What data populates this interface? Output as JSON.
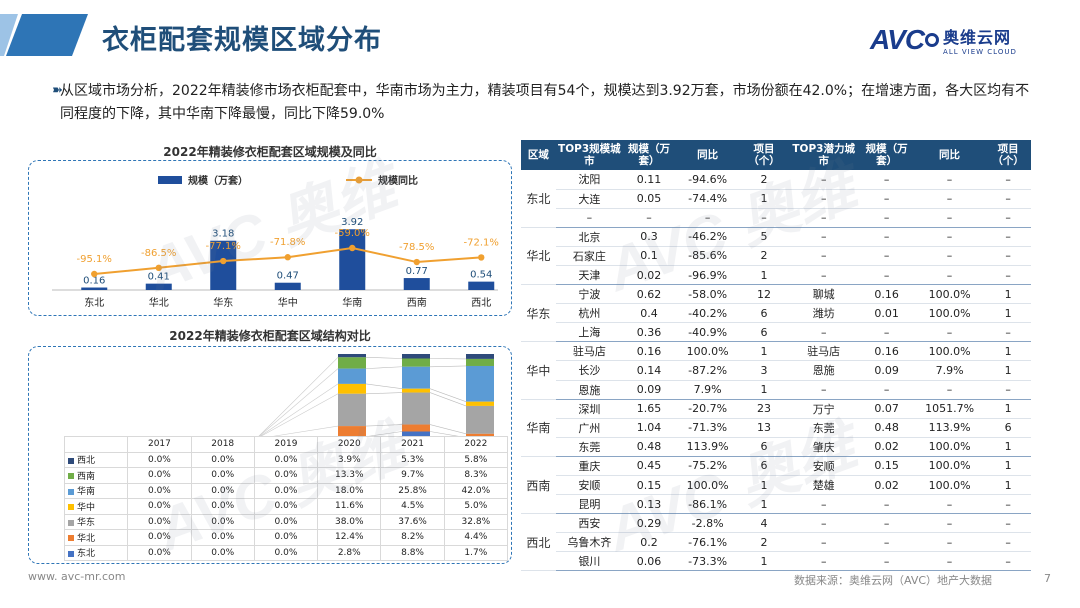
{
  "header": {
    "title": "衣柜配套规模区域分布",
    "logo_main": "AVC",
    "logo_cn": "奥维云网",
    "logo_en": "ALL VIEW CLOUD"
  },
  "summary_text": "从区域市场分析，2022年精装修市场衣柜配套中，华南市场为主力，精装项目有54个，规模达到3.92万套，市场份额在42.0%；在增速方面，各大区均有不同程度的下降，其中华南下降最慢，同比下降59.0%",
  "chart_data": [
    {
      "type": "bar",
      "title": "2022年精装修衣柜配套区域规模及同比",
      "categories": [
        "东北",
        "华北",
        "华东",
        "华中",
        "华南",
        "西南",
        "西北"
      ],
      "series": [
        {
          "name": "规模（万套）",
          "type": "bar",
          "values": [
            0.16,
            0.41,
            3.18,
            0.47,
            3.92,
            0.77,
            0.54
          ],
          "labels": [
            "0.16",
            "0.41",
            "3.18",
            "0.47",
            "3.92",
            "0.77",
            "0.54"
          ]
        },
        {
          "name": "规模同比",
          "type": "line",
          "values": [
            -95.1,
            -86.5,
            -77.1,
            -71.8,
            -59.0,
            -78.5,
            -72.1
          ],
          "labels": [
            "-95.1%",
            "-86.5%",
            "-77.1%",
            "-71.8%",
            "-59.0%",
            "-78.5%",
            "-72.1%"
          ]
        }
      ],
      "colors": {
        "bar": "#1f4e9c",
        "line": "#f0a030"
      }
    },
    {
      "type": "stacked-bar",
      "title": "2022年精装修衣柜配套区域结构对比",
      "years": [
        "2017",
        "2018",
        "2019",
        "2020",
        "2021",
        "2022"
      ],
      "series": [
        {
          "name": "西北",
          "color": "#2e4a7a",
          "values": [
            "0.0%",
            "0.0%",
            "0.0%",
            "3.9%",
            "5.3%",
            "5.8%"
          ]
        },
        {
          "name": "西南",
          "color": "#70ad47",
          "values": [
            "0.0%",
            "0.0%",
            "0.0%",
            "13.3%",
            "9.7%",
            "8.3%"
          ]
        },
        {
          "name": "华南",
          "color": "#5b9bd5",
          "values": [
            "0.0%",
            "0.0%",
            "0.0%",
            "18.0%",
            "25.8%",
            "42.0%"
          ]
        },
        {
          "name": "华中",
          "color": "#ffc000",
          "values": [
            "0.0%",
            "0.0%",
            "0.0%",
            "11.6%",
            "4.5%",
            "5.0%"
          ]
        },
        {
          "name": "华东",
          "color": "#a5a5a5",
          "values": [
            "0.0%",
            "0.0%",
            "0.0%",
            "38.0%",
            "37.6%",
            "32.8%"
          ]
        },
        {
          "name": "华北",
          "color": "#ed7d31",
          "values": [
            "0.0%",
            "0.0%",
            "0.0%",
            "12.4%",
            "8.2%",
            "4.4%"
          ]
        },
        {
          "name": "东北",
          "color": "#4472c4",
          "values": [
            "0.0%",
            "0.0%",
            "0.0%",
            "2.8%",
            "8.8%",
            "1.7%"
          ]
        }
      ],
      "numeric": {
        "2020": [
          3.9,
          13.3,
          18.0,
          11.6,
          38.0,
          12.4,
          2.8
        ],
        "2021": [
          5.3,
          9.7,
          25.8,
          4.5,
          37.6,
          8.2,
          8.8
        ],
        "2022": [
          5.8,
          8.3,
          42.0,
          5.0,
          32.8,
          4.4,
          1.7
        ]
      }
    },
    {
      "type": "table",
      "columns": [
        "区域",
        "TOP3规模城市",
        "规模（万套）",
        "同比",
        "项目（个）",
        "TOP3潜力城市",
        "规模（万套）",
        "同比",
        "项目（个）"
      ],
      "groups": [
        {
          "region": "东北",
          "rows": [
            [
              "沈阳",
              "0.11",
              "-94.6%",
              "2",
              "-",
              "-",
              "-",
              "-"
            ],
            [
              "大连",
              "0.05",
              "-74.4%",
              "1",
              "-",
              "-",
              "-",
              "-"
            ],
            [
              "-",
              "-",
              "-",
              "-",
              "-",
              "-",
              "-",
              "-"
            ]
          ]
        },
        {
          "region": "华北",
          "rows": [
            [
              "北京",
              "0.3",
              "-46.2%",
              "5",
              "-",
              "-",
              "-",
              "-"
            ],
            [
              "石家庄",
              "0.1",
              "-85.6%",
              "2",
              "-",
              "-",
              "-",
              "-"
            ],
            [
              "天津",
              "0.02",
              "-96.9%",
              "1",
              "-",
              "-",
              "-",
              "-"
            ]
          ]
        },
        {
          "region": "华东",
          "rows": [
            [
              "宁波",
              "0.62",
              "-58.0%",
              "12",
              "聊城",
              "0.16",
              "100.0%",
              "1"
            ],
            [
              "杭州",
              "0.4",
              "-40.2%",
              "6",
              "潍坊",
              "0.01",
              "100.0%",
              "1"
            ],
            [
              "上海",
              "0.36",
              "-40.9%",
              "6",
              "-",
              "-",
              "-",
              "-"
            ]
          ]
        },
        {
          "region": "华中",
          "rows": [
            [
              "驻马店",
              "0.16",
              "100.0%",
              "1",
              "驻马店",
              "0.16",
              "100.0%",
              "1"
            ],
            [
              "长沙",
              "0.14",
              "-87.2%",
              "3",
              "恩施",
              "0.09",
              "7.9%",
              "1"
            ],
            [
              "恩施",
              "0.09",
              "7.9%",
              "1",
              "-",
              "-",
              "-",
              "-"
            ]
          ]
        },
        {
          "region": "华南",
          "rows": [
            [
              "深圳",
              "1.65",
              "-20.7%",
              "23",
              "万宁",
              "0.07",
              "1051.7%",
              "1"
            ],
            [
              "广州",
              "1.04",
              "-71.3%",
              "13",
              "东莞",
              "0.48",
              "113.9%",
              "6"
            ],
            [
              "东莞",
              "0.48",
              "113.9%",
              "6",
              "肇庆",
              "0.02",
              "100.0%",
              "1"
            ]
          ]
        },
        {
          "region": "西南",
          "rows": [
            [
              "重庆",
              "0.45",
              "-75.2%",
              "6",
              "安顺",
              "0.15",
              "100.0%",
              "1"
            ],
            [
              "安顺",
              "0.15",
              "100.0%",
              "1",
              "楚雄",
              "0.02",
              "100.0%",
              "1"
            ],
            [
              "昆明",
              "0.13",
              "-86.1%",
              "1",
              "-",
              "-",
              "-",
              "-"
            ]
          ]
        },
        {
          "region": "西北",
          "rows": [
            [
              "西安",
              "0.29",
              "-2.8%",
              "4",
              "-",
              "-",
              "-",
              "-"
            ],
            [
              "乌鲁木齐",
              "0.2",
              "-76.1%",
              "2",
              "-",
              "-",
              "-",
              "-"
            ],
            [
              "银川",
              "0.06",
              "-73.3%",
              "1",
              "-",
              "-",
              "-",
              "-"
            ]
          ]
        }
      ]
    }
  ],
  "footer": {
    "url": "www. avc-mr.com",
    "source": "数据来源：奥维云网（AVC）地产大数据",
    "page": "7"
  }
}
